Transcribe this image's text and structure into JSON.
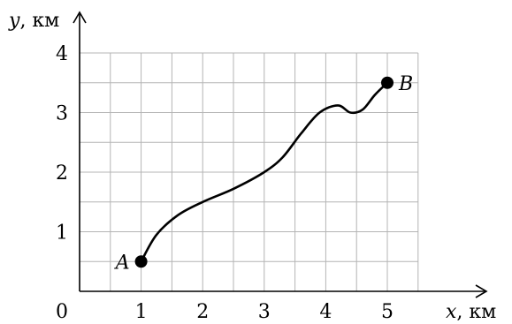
{
  "chart_data": {
    "type": "line",
    "xlabel": {
      "var": "x",
      "unit": ", км"
    },
    "ylabel": {
      "var": "y",
      "unit": ", км"
    },
    "xlim": [
      0,
      5.5
    ],
    "ylim": [
      0,
      4
    ],
    "grid": true,
    "grid_step": 0.5,
    "origin_label": "0",
    "x_ticks": [
      "1",
      "2",
      "3",
      "4",
      "5"
    ],
    "x_tick_values": [
      1,
      2,
      3,
      4,
      5
    ],
    "y_ticks": [
      "1",
      "2",
      "3",
      "4"
    ],
    "y_tick_values": [
      1,
      2,
      3,
      4
    ],
    "series": [
      {
        "x": [
          1,
          1.25,
          1.6,
          2.0,
          2.5,
          3.0,
          3.3,
          3.6,
          3.9,
          4.2,
          4.4,
          4.6,
          4.8,
          5.0
        ],
        "y": [
          0.5,
          0.95,
          1.28,
          1.5,
          1.72,
          2.0,
          2.25,
          2.65,
          3.0,
          3.12,
          3.0,
          3.05,
          3.3,
          3.5
        ]
      }
    ],
    "points": [
      {
        "label": "A",
        "x": 1,
        "y": 0.5,
        "label_side": "left"
      },
      {
        "label": "B",
        "x": 5,
        "y": 3.5,
        "label_side": "right"
      }
    ]
  }
}
